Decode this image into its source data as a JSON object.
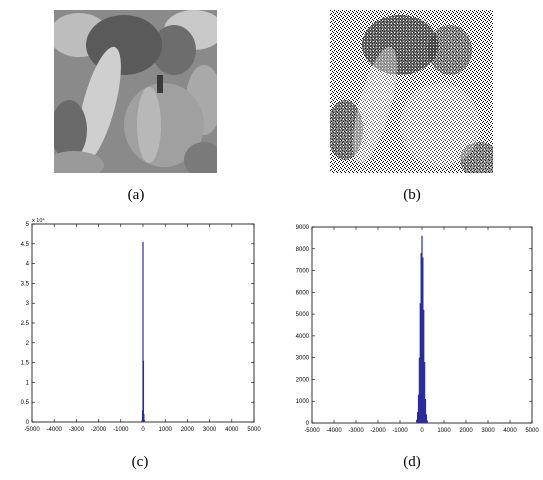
{
  "captions": {
    "a": "(a)",
    "b": "(b)",
    "c": "(c)",
    "d": "(d)"
  },
  "images": {
    "a": {
      "description_icon": "peppers-grayscale-photo"
    },
    "b": {
      "description_icon": "peppers-noisy-scrambled-photo"
    }
  },
  "colors": {
    "bar": "#2b2b9a",
    "axis": "#000000"
  },
  "chart_data": [
    {
      "type": "bar",
      "title": "",
      "xlabel": "",
      "ylabel": "",
      "xlim": [
        -5000,
        5000
      ],
      "ylim": [
        0,
        5
      ],
      "y_exponent_label": "x 10⁴",
      "x_ticks": [
        "-5000",
        "-4000",
        "-3000",
        "-2000",
        "-1000",
        "0",
        "1000",
        "2000",
        "3000",
        "4000",
        "5000"
      ],
      "y_ticks": [
        "0",
        "0.5",
        "1",
        "1.5",
        "2",
        "2.5",
        "3",
        "3.5",
        "4",
        "4.5",
        "5"
      ],
      "x": [
        -40,
        -20,
        0,
        20,
        40,
        60
      ],
      "values": [
        0.05,
        0.3,
        4.55,
        1.55,
        0.2,
        0.05
      ]
    },
    {
      "type": "bar",
      "title": "",
      "xlabel": "",
      "ylabel": "",
      "xlim": [
        -5000,
        5000
      ],
      "ylim": [
        0,
        9000
      ],
      "x_ticks": [
        "-5000",
        "-4000",
        "-3000",
        "-2000",
        "-1000",
        "0",
        "1000",
        "2000",
        "3000",
        "4000",
        "5000"
      ],
      "y_ticks": [
        "0",
        "1000",
        "2000",
        "3000",
        "4000",
        "5000",
        "6000",
        "7000",
        "8000",
        "9000"
      ],
      "x": [
        -240,
        -200,
        -160,
        -120,
        -80,
        -40,
        0,
        40,
        80,
        120,
        160,
        200,
        240
      ],
      "values": [
        150,
        500,
        1300,
        3000,
        5500,
        7800,
        8600,
        7600,
        5200,
        2800,
        1100,
        400,
        120
      ]
    }
  ]
}
